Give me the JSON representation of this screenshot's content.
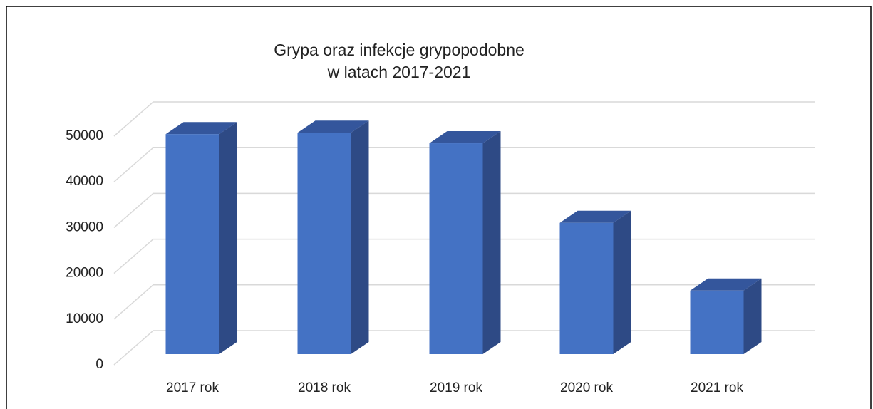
{
  "chart_data": {
    "type": "bar3d",
    "title": "Grypa oraz infekcje grypopodobne",
    "subtitle": "w latach 2017-2021",
    "categories": [
      "2017 rok",
      "2018 rok",
      "2019 rok",
      "2020 rok",
      "2021 rok"
    ],
    "values": [
      48100,
      48400,
      46100,
      28700,
      13900
    ],
    "color": "#4472c4",
    "ylim": [
      0,
      50000
    ],
    "yticks": [
      0,
      10000,
      20000,
      30000,
      40000,
      50000
    ],
    "grid": true
  }
}
